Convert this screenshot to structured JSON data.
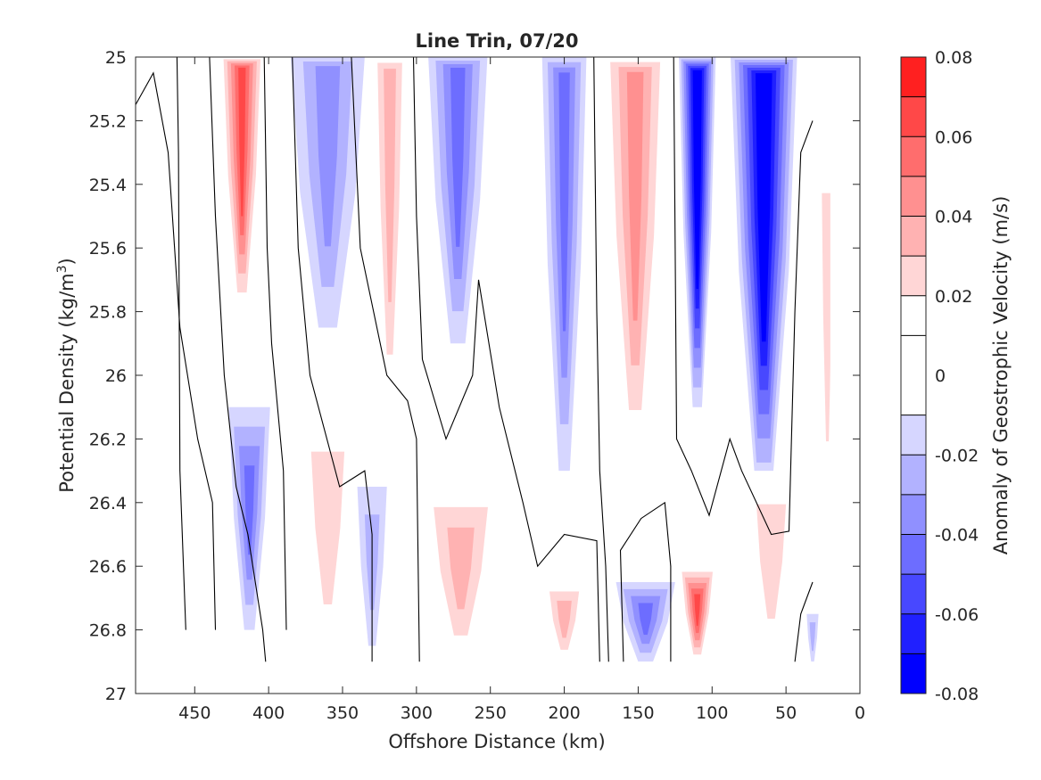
{
  "chart_data": {
    "type": "heatmap",
    "title": "Line Trin, 07/20",
    "xlabel": "Offshore Distance (km)",
    "ylabel_main": "Potential Density (kg/m",
    "ylabel_sup": "3",
    "ylabel_close": ")",
    "xlim": [
      490,
      0
    ],
    "ylim": [
      27,
      25
    ],
    "x_reversed": true,
    "y_reversed": true,
    "x_ticks": [
      450,
      400,
      350,
      300,
      250,
      200,
      150,
      100,
      50,
      0
    ],
    "x_tick_labels": [
      "450",
      "400",
      "350",
      "300",
      "250",
      "200",
      "150",
      "100",
      "50",
      "0"
    ],
    "y_ticks": [
      25,
      25.2,
      25.4,
      25.6,
      25.8,
      26,
      26.2,
      26.4,
      26.6,
      26.8,
      27
    ],
    "y_tick_labels": [
      "25",
      "25.2",
      "25.4",
      "25.6",
      "25.8",
      "26",
      "26.2",
      "26.4",
      "26.6",
      "26.8",
      "27"
    ],
    "grid": false,
    "colorbar": {
      "label": "Anomaly of Geostrophic Velocity (m/s)",
      "range": [
        -0.08,
        0.08
      ],
      "tick_values": [
        0.08,
        0.06,
        0.04,
        0.02,
        0,
        -0.02,
        -0.04,
        -0.06,
        -0.08
      ],
      "tick_labels": [
        "0.08",
        "0.06",
        "0.04",
        "0.02",
        "0",
        "-0.02",
        "-0.04",
        "-0.06",
        "-0.08"
      ],
      "levels": [
        -0.08,
        -0.07,
        -0.06,
        -0.05,
        -0.04,
        -0.03,
        -0.02,
        -0.01,
        0.01,
        0.02,
        0.03,
        0.04,
        0.05,
        0.06,
        0.07,
        0.08
      ],
      "colors": [
        "#0000ff",
        "#2020ff",
        "#4848ff",
        "#6d6dff",
        "#9090ff",
        "#b2b2ff",
        "#d6d6ff",
        "#ffffff",
        "#ffffff",
        "#ffd6d6",
        "#ffb2b2",
        "#ff9090",
        "#ff6d6d",
        "#ff4848",
        "#ff2020",
        "#ff0000"
      ]
    },
    "data_region": {
      "x_from": 490,
      "x_to": 20,
      "density_from": 25,
      "density_to": 26.9
    },
    "cores": [
      {
        "x": 418,
        "density_top": 25,
        "density_bottom": 25.8,
        "width_km": 30,
        "peak": 0.055
      },
      {
        "x": 360,
        "density_top": 25,
        "density_bottom": 25.85,
        "width_km": 50,
        "peak": -0.025
      },
      {
        "x": 318,
        "density_top": 25,
        "density_bottom": 26.1,
        "width_km": 25,
        "peak": 0.025
      },
      {
        "x": 272,
        "density_top": 25,
        "density_bottom": 25.9,
        "width_km": 40,
        "peak": -0.035
      },
      {
        "x": 200,
        "density_top": 25,
        "density_bottom": 26.3,
        "width_km": 30,
        "peak": -0.035
      },
      {
        "x": 152,
        "density_top": 25,
        "density_bottom": 26.25,
        "width_km": 45,
        "peak": 0.04
      },
      {
        "x": 110,
        "density_top": 25,
        "density_bottom": 26.1,
        "width_km": 25,
        "peak": -0.08
      },
      {
        "x": 65,
        "density_top": 25,
        "density_bottom": 26.35,
        "width_km": 45,
        "peak": -0.075
      },
      {
        "x": 22,
        "density_top": 25.2,
        "density_bottom": 26.5,
        "width_km": 15,
        "peak": 0.018
      },
      {
        "x": 413,
        "density_top": 26.1,
        "density_bottom": 26.8,
        "width_km": 28,
        "peak": -0.04
      },
      {
        "x": 330,
        "density_top": 26.35,
        "density_bottom": 26.85,
        "width_km": 20,
        "peak": -0.022
      },
      {
        "x": 360,
        "density_top": 26.1,
        "density_bottom": 26.9,
        "width_km": 45,
        "peak": 0.022
      },
      {
        "x": 270,
        "density_top": 26.35,
        "density_bottom": 26.9,
        "width_km": 55,
        "peak": 0.03
      },
      {
        "x": 200,
        "density_top": 26.65,
        "density_bottom": 26.9,
        "width_km": 30,
        "peak": 0.03
      },
      {
        "x": 145,
        "density_top": 26.65,
        "density_bottom": 26.9,
        "width_km": 40,
        "peak": -0.035
      },
      {
        "x": 110,
        "density_top": 26.6,
        "density_bottom": 26.9,
        "width_km": 25,
        "peak": 0.055
      },
      {
        "x": 60,
        "density_top": 26.3,
        "density_bottom": 26.9,
        "width_km": 40,
        "peak": 0.022
      },
      {
        "x": 32,
        "density_top": 26.75,
        "density_bottom": 26.9,
        "width_km": 8,
        "peak": -0.02
      }
    ],
    "zero_contours": [
      [
        [
          490,
          25.15
        ],
        [
          478,
          25.05
        ],
        [
          468,
          25.3
        ],
        [
          460,
          25.85
        ],
        [
          448,
          26.2
        ],
        [
          438,
          26.4
        ],
        [
          436,
          26.8
        ]
      ],
      [
        [
          456,
          26.8
        ],
        [
          460,
          26.3
        ],
        [
          461,
          25.3
        ],
        [
          462,
          25
        ]
      ],
      [
        [
          440,
          25
        ],
        [
          436,
          25.5
        ],
        [
          430,
          26.0
        ],
        [
          422,
          26.35
        ],
        [
          414,
          26.5
        ],
        [
          404,
          26.8
        ],
        [
          402,
          26.9
        ]
      ],
      [
        [
          403,
          25
        ],
        [
          401,
          25.6
        ],
        [
          398,
          25.9
        ],
        [
          390,
          26.3
        ],
        [
          388,
          26.8
        ]
      ],
      [
        [
          384,
          25
        ],
        [
          380,
          25.6
        ],
        [
          372,
          26.0
        ],
        [
          352,
          26.35
        ],
        [
          335,
          26.3
        ],
        [
          330,
          26.5
        ],
        [
          330,
          26.9
        ]
      ],
      [
        [
          344,
          25
        ],
        [
          338,
          25.6
        ],
        [
          320,
          26.0
        ],
        [
          306,
          26.08
        ],
        [
          300,
          26.2
        ],
        [
          298,
          26.9
        ]
      ],
      [
        [
          302,
          25
        ],
        [
          300,
          25.5
        ],
        [
          296,
          25.95
        ],
        [
          280,
          26.2
        ],
        [
          262,
          26.0
        ],
        [
          258,
          25.7
        ],
        [
          244,
          26.1
        ],
        [
          228,
          26.4
        ],
        [
          218,
          26.6
        ],
        [
          200,
          26.5
        ],
        [
          178,
          26.52
        ],
        [
          176,
          26.9
        ]
      ],
      [
        [
          180,
          25
        ],
        [
          178,
          25.8
        ],
        [
          176,
          26.3
        ],
        [
          172,
          26.6
        ],
        [
          170,
          26.9
        ]
      ],
      [
        [
          160,
          26.9
        ],
        [
          162,
          26.55
        ],
        [
          148,
          26.45
        ],
        [
          132,
          26.4
        ],
        [
          128,
          26.6
        ],
        [
          128,
          26.9
        ]
      ],
      [
        [
          126,
          25
        ],
        [
          125,
          25.6
        ],
        [
          124,
          26.2
        ],
        [
          114,
          26.3
        ],
        [
          102,
          26.44
        ],
        [
          88,
          26.2
        ],
        [
          80,
          26.3
        ],
        [
          60,
          26.5
        ],
        [
          48,
          26.49
        ],
        [
          44,
          25.8
        ],
        [
          40,
          25.3
        ],
        [
          32,
          25.2
        ]
      ],
      [
        [
          44,
          26.9
        ],
        [
          40,
          26.75
        ],
        [
          32,
          26.65
        ]
      ]
    ]
  }
}
